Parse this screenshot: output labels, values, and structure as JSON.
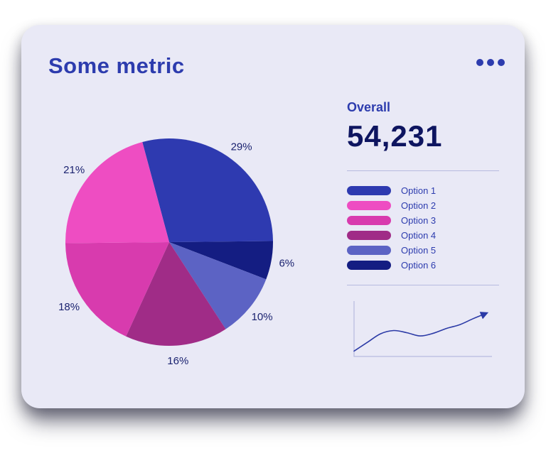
{
  "card": {
    "title": "Some metric",
    "menu_icon": "ellipsis-menu-icon"
  },
  "overall": {
    "label": "Overall",
    "value": "54,231"
  },
  "colors": {
    "card_background": "#e9e9f6",
    "title_text": "#2d3cae",
    "overall_value_text": "#0e1560",
    "divider": "#b7badf",
    "pie_label_text": "#1b2370",
    "sparkline": "#2b3aa6",
    "axis": "#b7badf"
  },
  "chart_data": [
    {
      "type": "pie",
      "title": "Some metric",
      "start_angle_deg": -15,
      "direction": "clockwise",
      "slices": [
        {
          "label": "Option 1",
          "value": 29,
          "pct_label": "29%",
          "color": "#2e3ab0"
        },
        {
          "label": "Option 6",
          "value": 6,
          "pct_label": "6%",
          "color": "#141d82"
        },
        {
          "label": "Option 5",
          "value": 10,
          "pct_label": "10%",
          "color": "#5c63c4"
        },
        {
          "label": "Option 4",
          "value": 16,
          "pct_label": "16%",
          "color": "#a02c87"
        },
        {
          "label": "Option 3",
          "value": 18,
          "pct_label": "18%",
          "color": "#d83bae"
        },
        {
          "label": "Option 2",
          "value": 21,
          "pct_label": "21%",
          "color": "#ee4dc2"
        }
      ],
      "legend_order": [
        "Option 1",
        "Option 2",
        "Option 3",
        "Option 4",
        "Option 5",
        "Option 6"
      ],
      "legend_position": "right"
    },
    {
      "type": "line",
      "title": "trend-sparkline",
      "x": [
        0,
        1,
        2,
        3,
        4,
        5,
        6,
        7,
        8,
        9,
        10
      ],
      "values": [
        10,
        26,
        42,
        48,
        44,
        38,
        43,
        52,
        59,
        70,
        80
      ],
      "ylim": [
        0,
        100
      ],
      "axes": "left-bottom",
      "arrow_end": true,
      "legend_position": "none"
    }
  ]
}
